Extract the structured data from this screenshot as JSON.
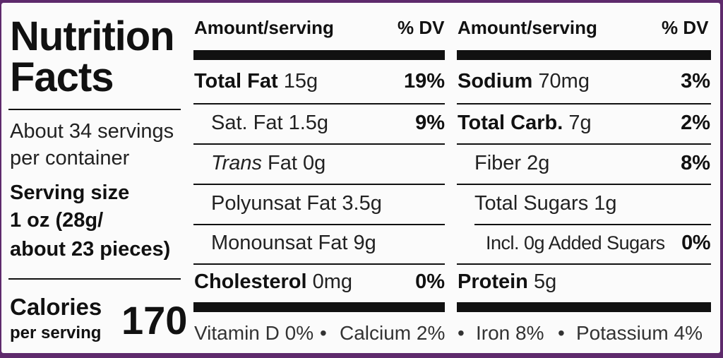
{
  "title": {
    "line1": "Nutrition",
    "line2": "Facts"
  },
  "servings": {
    "line1": "About 34 servings",
    "line2": "per container",
    "size_label": "Serving size",
    "size_line1": "1 oz (28g/",
    "size_line2": "about 23 pieces)"
  },
  "calories": {
    "label": "Calories",
    "sublabel": "per serving",
    "value": "170"
  },
  "header": {
    "amount": "Amount/serving",
    "dv": "% DV"
  },
  "left_column": [
    {
      "name": "Total Fat",
      "amount": "15g",
      "dv": "19%"
    },
    {
      "name": "Sat. Fat",
      "amount": "1.5g",
      "dv": "9%"
    },
    {
      "name_italic": "Trans",
      "name": "Fat",
      "amount": "0g",
      "dv": ""
    },
    {
      "name": "Polyunsat Fat",
      "amount": "3.5g",
      "dv": ""
    },
    {
      "name": "Monounsat Fat",
      "amount": "9g",
      "dv": ""
    },
    {
      "name": "Cholesterol",
      "amount": "0mg",
      "dv": "0%"
    }
  ],
  "right_column": [
    {
      "name": "Sodium",
      "amount": "70mg",
      "dv": "3%"
    },
    {
      "name": "Total Carb.",
      "amount": "7g",
      "dv": "2%"
    },
    {
      "name": "Fiber",
      "amount": "2g",
      "dv": "8%"
    },
    {
      "name": "Total Sugars",
      "amount": "1g",
      "dv": ""
    },
    {
      "name": "Incl. 0g Added Sugars",
      "amount": "",
      "dv": "0%"
    },
    {
      "name": "Protein",
      "amount": "5g",
      "dv": ""
    }
  ],
  "vitamins": {
    "vitamin_d": "Vitamin D 0%",
    "calcium": "Calcium 2%",
    "iron": "Iron 8%",
    "potassium": "Potassium 4%",
    "separator": "•"
  },
  "colors": {
    "frame": "#5e2a6c",
    "label_bg": "#fbfbfb",
    "ink": "#111111"
  }
}
